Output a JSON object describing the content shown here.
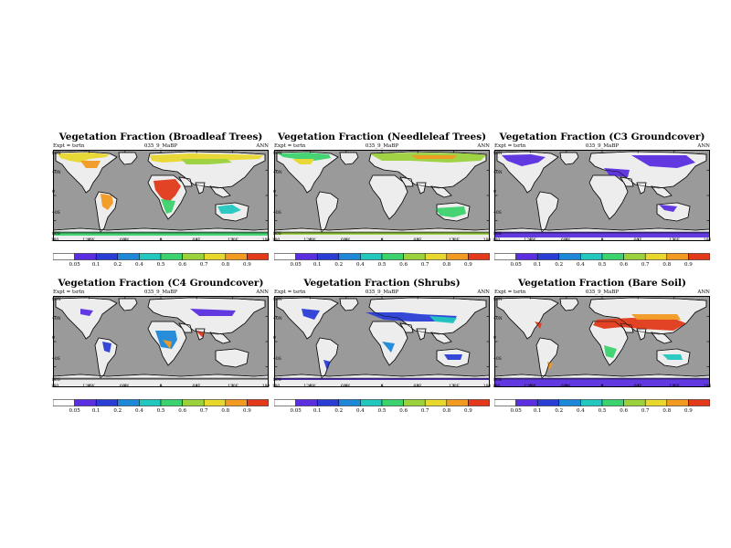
{
  "figure": {
    "colors": {
      "ocean": "#9a9a9a",
      "land": "#ededed",
      "coast": "#111111",
      "scale": [
        "#ffffff",
        "#5b2ee0",
        "#2a3ed6",
        "#1e88d8",
        "#22c8c0",
        "#3cd26e",
        "#9bd23c",
        "#e8d82e",
        "#f29a22",
        "#e23a1a"
      ]
    },
    "colorbar_labels": [
      "0.05",
      "0.1",
      "0.2",
      "0.4",
      "0.5",
      "0.6",
      "0.7",
      "0.8",
      "0.9"
    ],
    "lat_labels": [
      "80N",
      "40N",
      "0",
      "40S",
      "80S"
    ],
    "lon_labels": [
      "180",
      "120W",
      "60W",
      "0",
      "60E",
      "120E",
      "180"
    ],
    "panels": [
      {
        "title": "Vegetation Fraction (Broadleaf Trees)",
        "expt": "Expt = tsrtn",
        "model": "035_9_MaBP",
        "period": "ANN",
        "variable": "broadleaf"
      },
      {
        "title": "Vegetation Fraction (Needleleaf Trees)",
        "expt": "Expt = tsrtn",
        "model": "035_9_MaBP",
        "period": "ANN",
        "variable": "needleleaf"
      },
      {
        "title": "Vegetation Fraction (C3 Groundcover)",
        "expt": "Expt = tsrtn",
        "model": "035_9_MaBP",
        "period": "ANN",
        "variable": "c3"
      },
      {
        "title": "Vegetation Fraction (C4 Groundcover)",
        "expt": "Expt = tsrtn",
        "model": "035_9_MaBP",
        "period": "ANN",
        "variable": "c4"
      },
      {
        "title": "Vegetation Fraction (Shrubs)",
        "expt": "Expt = tsrtn",
        "model": "035_9_MaBP",
        "period": "ANN",
        "variable": "shrubs"
      },
      {
        "title": "Vegetation Fraction (Bare Soil)",
        "expt": "Expt = tsrtn",
        "model": "035_9_MaBP",
        "period": "ANN",
        "variable": "bare"
      }
    ]
  }
}
